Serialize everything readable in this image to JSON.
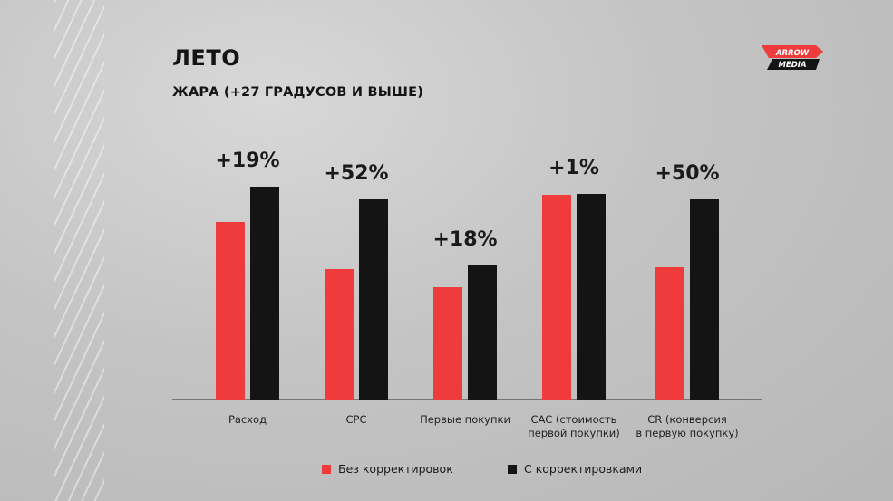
{
  "slide": {
    "title": "ЛЕТО",
    "subtitle": "ЖАРА (+27 ГРАДУСОВ И ВЫШЕ)",
    "logo": {
      "line1": "ARROW",
      "line2": "MEDIA"
    }
  },
  "colors": {
    "series1": "#ef3b3b",
    "series2": "#141414"
  },
  "chart_data": {
    "type": "bar",
    "categories": [
      [
        "Расход"
      ],
      [
        "CPC"
      ],
      [
        "Первые покупки"
      ],
      [
        "CAC (стоимость",
        "первой покупки)"
      ],
      [
        "CR (конверсия",
        "в первую покупку)"
      ]
    ],
    "series": [
      {
        "name": "Без корректировок",
        "values": [
          196,
          144,
          124,
          226,
          146
        ]
      },
      {
        "name": "С корректировками",
        "values": [
          235,
          221,
          148,
          227,
          221
        ]
      }
    ],
    "annotations": [
      "+19%",
      "+52%",
      "+18%",
      "+1%",
      "+50%"
    ],
    "ylim": [
      0,
      240
    ],
    "grid": false,
    "legend": "bottom"
  }
}
